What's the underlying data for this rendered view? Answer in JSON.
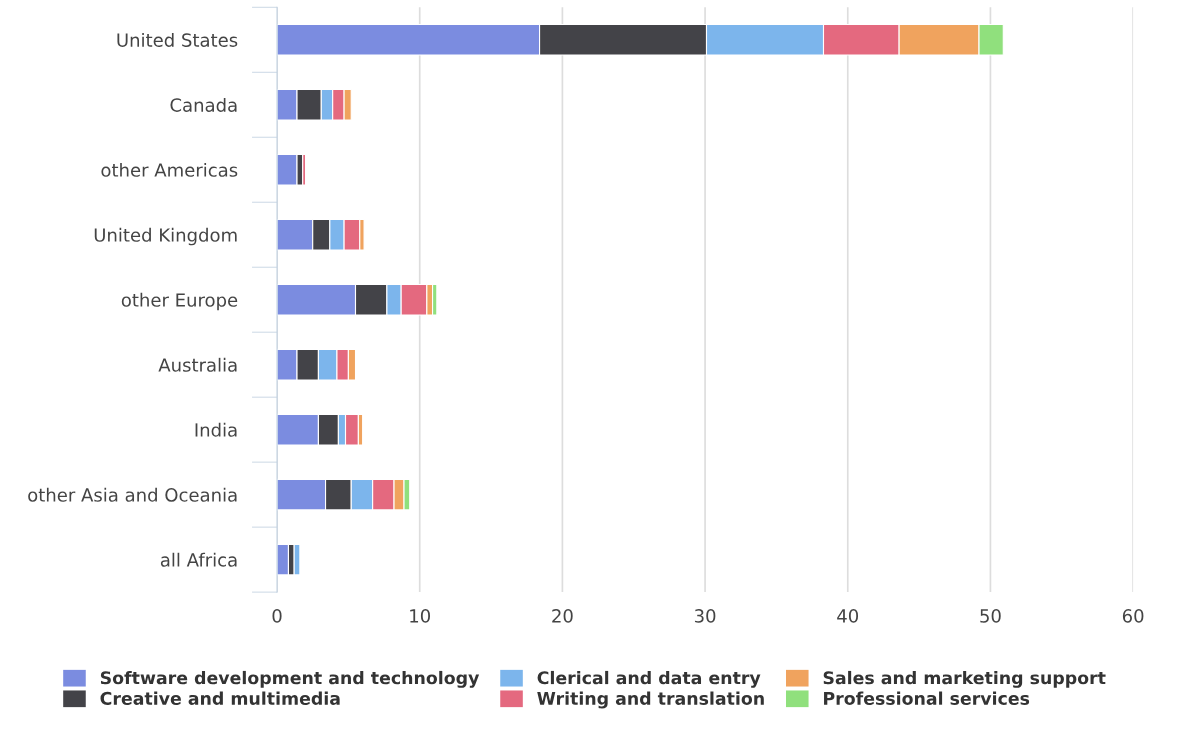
{
  "chart_data": {
    "type": "bar",
    "orientation": "horizontal",
    "stacked": true,
    "categories": [
      "United States",
      "Canada",
      "other Americas",
      "United Kingdom",
      "other Europe",
      "Australia",
      "India",
      "other Asia and Oceania",
      "all Africa"
    ],
    "series": [
      {
        "name": "Software development and technology",
        "color": "#7b8ce0",
        "values": [
          18.4,
          1.4,
          1.4,
          2.5,
          5.5,
          1.4,
          2.9,
          3.4,
          0.8
        ]
      },
      {
        "name": "Creative and multimedia",
        "color": "#434348",
        "values": [
          11.7,
          1.7,
          0.4,
          1.2,
          2.2,
          1.5,
          1.4,
          1.8,
          0.4
        ]
      },
      {
        "name": "Clerical and data entry",
        "color": "#7cb5ec",
        "values": [
          8.2,
          0.8,
          null,
          1.0,
          1.0,
          1.3,
          0.5,
          1.5,
          0.4
        ]
      },
      {
        "name": "Writing and translation",
        "color": "#e4697f",
        "values": [
          5.3,
          0.8,
          0.2,
          1.1,
          1.8,
          0.8,
          0.9,
          1.5,
          null
        ]
      },
      {
        "name": "Sales and marketing support",
        "color": "#f0a35e",
        "values": [
          5.6,
          0.5,
          null,
          0.3,
          0.4,
          0.5,
          0.3,
          0.7,
          null
        ]
      },
      {
        "name": "Professional services",
        "color": "#90e07d",
        "values": [
          1.7,
          null,
          null,
          null,
          0.3,
          null,
          null,
          0.4,
          null
        ]
      }
    ],
    "xlim": [
      0,
      60
    ],
    "xticks": [
      0,
      10,
      20,
      30,
      40,
      50,
      60
    ],
    "grid": "x",
    "legend": "bottom"
  }
}
